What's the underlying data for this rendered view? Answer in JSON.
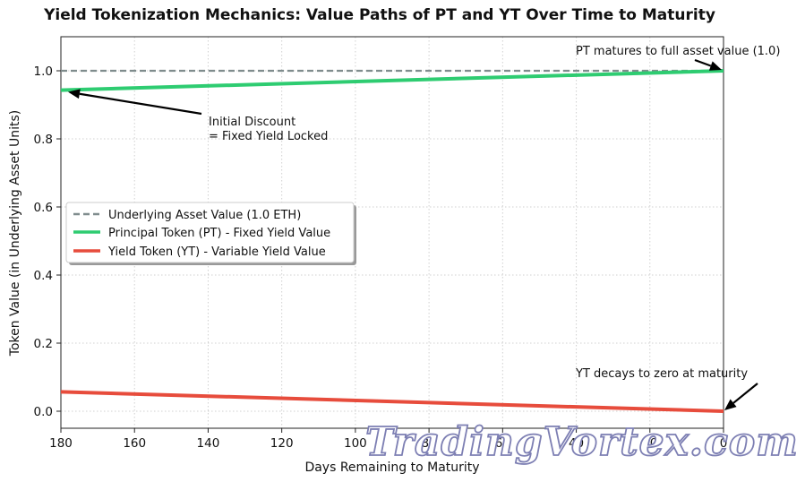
{
  "chart_data": {
    "type": "line",
    "title": "Yield Tokenization Mechanics: Value Paths of PT and YT Over Time to Maturity",
    "xlabel": "Days Remaining to Maturity",
    "ylabel": "Token Value (in Underlying Asset Units)",
    "xlim": [
      180,
      0
    ],
    "ylim": [
      -0.05,
      1.1
    ],
    "x_inverted": true,
    "xticks": [
      180,
      160,
      140,
      120,
      100,
      80,
      60,
      40,
      20,
      0
    ],
    "yticks": [
      0.0,
      0.2,
      0.4,
      0.6,
      0.8,
      1.0
    ],
    "xtick_labels": [
      "180",
      "160",
      "140",
      "120",
      "100",
      "80",
      "60",
      "40",
      "20",
      "0"
    ],
    "ytick_labels": [
      "0.0",
      "0.2",
      "0.4",
      "0.6",
      "0.8",
      "1.0"
    ],
    "grid": true,
    "legend_position": "center-left",
    "series": [
      {
        "name": "Underlying Asset Value (1.0 ETH)",
        "style": "dashed",
        "color": "#7f8c8d",
        "x": [
          180,
          0
        ],
        "y": [
          1.0,
          1.0
        ]
      },
      {
        "name": "Principal Token (PT) - Fixed Yield Value",
        "style": "solid",
        "color": "#2ecc71",
        "x": [
          180,
          0
        ],
        "y": [
          0.943,
          1.0
        ]
      },
      {
        "name": "Yield Token (YT) - Variable Yield Value",
        "style": "solid",
        "color": "#e74c3c",
        "x": [
          180,
          0
        ],
        "y": [
          0.057,
          0.0
        ]
      }
    ],
    "annotations": [
      {
        "lines": [
          "Initial Discount",
          "= Fixed Yield Locked"
        ],
        "target": [
          180,
          0.943
        ]
      },
      {
        "lines": [
          "PT matures to full asset value (1.0)"
        ],
        "target": [
          0,
          1.0
        ]
      },
      {
        "lines": [
          "YT decays to zero at maturity"
        ],
        "target": [
          0,
          0.0
        ]
      }
    ]
  },
  "watermark": "TradingVortex.com"
}
